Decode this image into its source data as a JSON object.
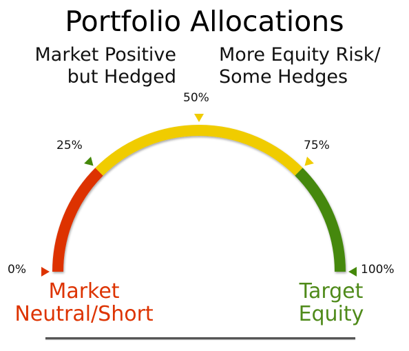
{
  "title": "Portfolio Allocations",
  "region_labels": {
    "left": [
      "Market Positive",
      "but Hedged"
    ],
    "right": [
      "More Equity Risk/",
      "Some Hedges"
    ]
  },
  "ticks": [
    {
      "label": "0%",
      "value": 0,
      "color": "#dd3300"
    },
    {
      "label": "25%",
      "value": 25,
      "color": "#44880a"
    },
    {
      "label": "50%",
      "value": 50,
      "color": "#f0cc00"
    },
    {
      "label": "75%",
      "value": 75,
      "color": "#f0cc00"
    },
    {
      "label": "100%",
      "value": 100,
      "color": "#44880a"
    }
  ],
  "end_labels": {
    "left": [
      "Market",
      "Neutral/Short"
    ],
    "right": [
      "Target",
      "Equity"
    ]
  },
  "colors": {
    "red": "#dd3300",
    "yellow": "#f0cc00",
    "green": "#44880a",
    "left_text": "#dd3300",
    "right_text": "#4f8a1a"
  },
  "segments": [
    {
      "from": 0,
      "to": 25,
      "color": "#dd3300"
    },
    {
      "from": 25,
      "to": 75,
      "color": "#f0cc00"
    },
    {
      "from": 75,
      "to": 100,
      "color": "#44880a"
    }
  ]
}
